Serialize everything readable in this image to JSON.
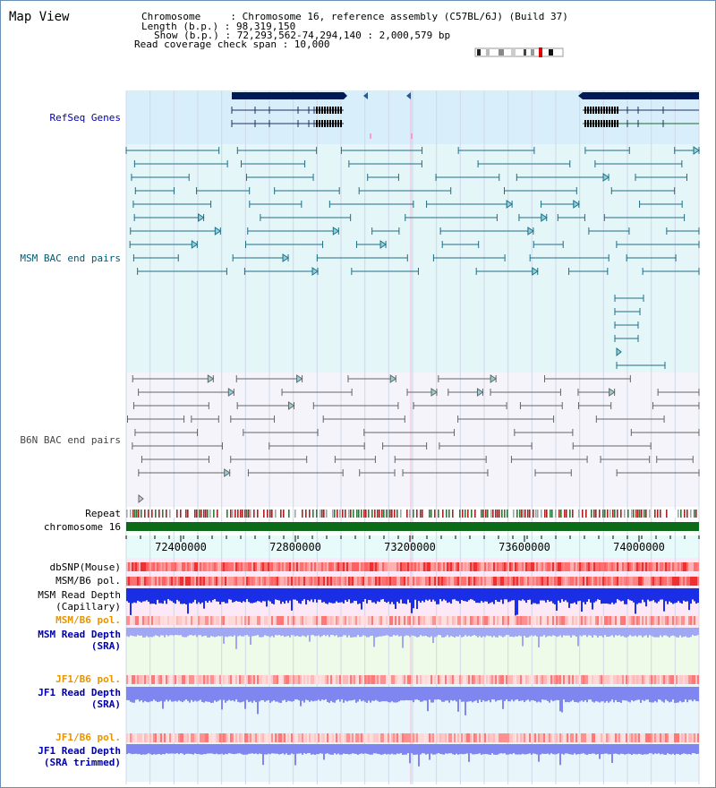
{
  "header": {
    "title": "Map View",
    "info_lines": [
      "Chromosome     : Chromosome 16, reference assembly (C57BL/6J) (Build 37)",
      "Length (b.p.) : 98,319,150",
      "Show (b.p.) : 72,293,562-74,294,140 : 2,000,579 bp",
      "Read coverage check span : 10,000"
    ]
  },
  "tracks": {
    "refseq": "RefSeq Genes",
    "msm_bac": "MSM BAC end pairs",
    "b6n_bac": "B6N BAC end pairs",
    "repeat": "Repeat",
    "chromosome": "chromosome 16",
    "dbsnp": "dbSNP(Mouse)",
    "msm_b6_pol_1": "MSM/B6 pol.",
    "msm_depth_cap_1": "MSM Read Depth",
    "msm_depth_cap_2": "(Capillary)",
    "msm_b6_pol_2": "MSM/B6 pol.",
    "msm_depth_sra_1": "MSM Read Depth",
    "msm_depth_sra_2": "(SRA)",
    "jf1_b6_pol_1": "JF1/B6 pol.",
    "jf1_depth_sra_1": "JF1 Read Depth",
    "jf1_depth_sra_2": "(SRA)",
    "jf1_b6_pol_2": "JF1/B6 pol.",
    "jf1_depth_trim_1": "JF1 Read Depth",
    "jf1_depth_trim_2": "(SRA trimmed)"
  },
  "axis": {
    "ticks": [
      "72400000",
      "72800000",
      "73200000",
      "73600000",
      "74000000"
    ]
  },
  "colors": {
    "refseq_bg": "#d8eefa",
    "msm_bg": "#e4f6f8",
    "b6n_bg": "#f4f4fa",
    "msm_track": "#1f6f86",
    "b6n_track": "#666666",
    "gene": "#001a55",
    "chrom": "#0b6b18",
    "depth_dark": "#1a2ee6",
    "depth_light": "#7f86f0",
    "label_blue": "#0000aa",
    "label_teal": "#005a70",
    "label_orange": "#e89500"
  }
}
